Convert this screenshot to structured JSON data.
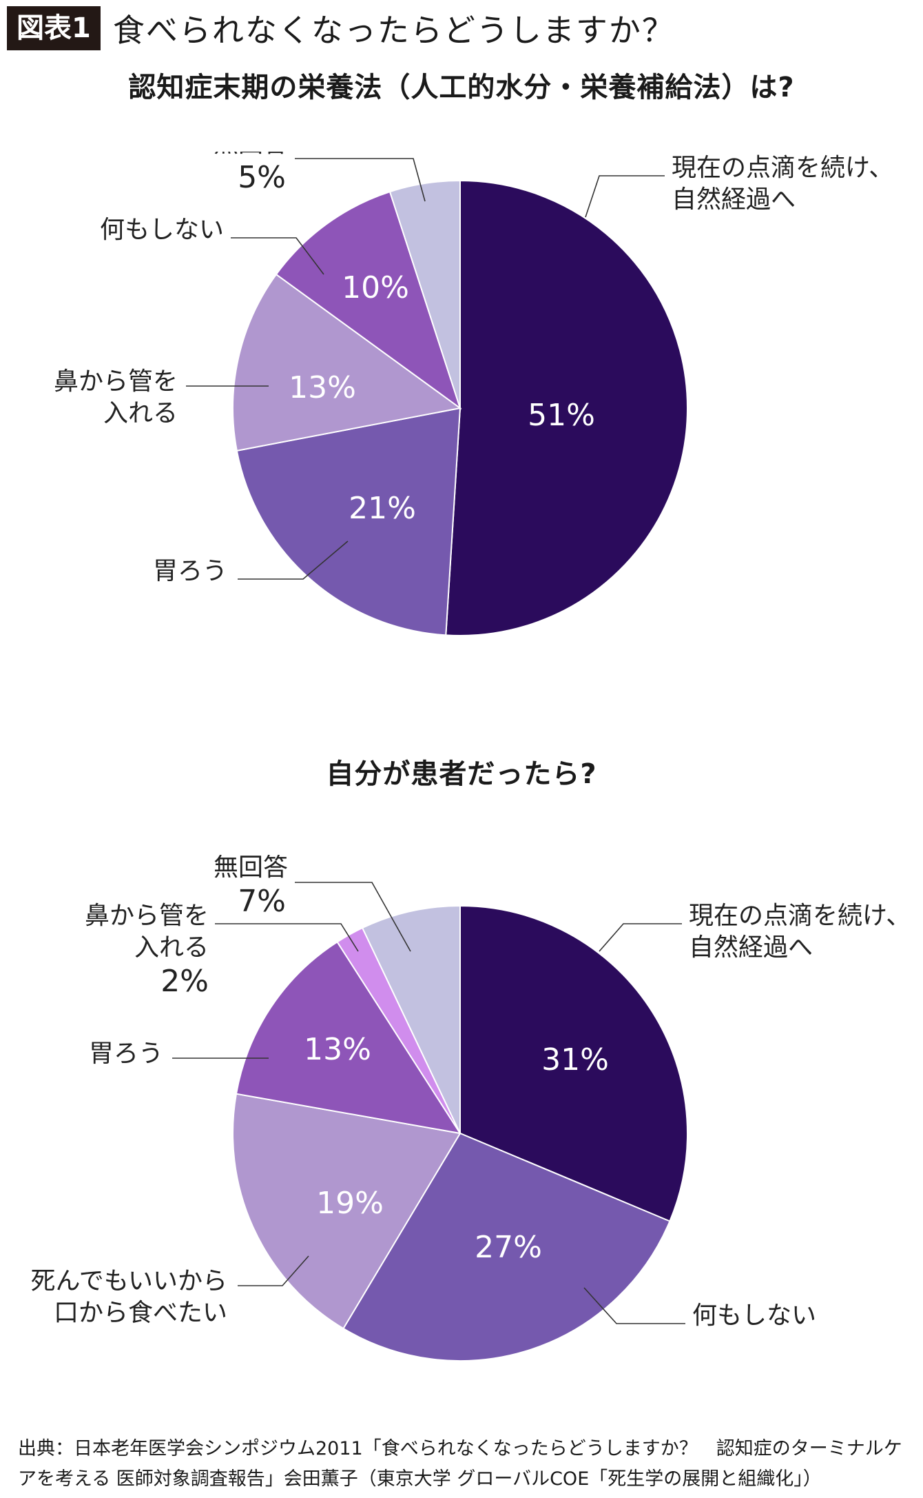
{
  "header": {
    "badge": "図表1",
    "title": "食べられなくなったらどうしますか？"
  },
  "chart_data": [
    {
      "type": "pie",
      "title": "認知症末期の栄養法（人工的水分・栄養補給法）は?",
      "slices": [
        {
          "label": "現在の点滴を続け、\n自然経過へ",
          "value": 51,
          "pct_label": "51%",
          "color": "#2b0b5c"
        },
        {
          "label": "胃ろう",
          "value": 21,
          "pct_label": "21%",
          "color": "#7559ae"
        },
        {
          "label": "鼻から管を\n入れる",
          "value": 13,
          "pct_label": "13%",
          "color": "#b097cf"
        },
        {
          "label": "何もしない",
          "value": 10,
          "pct_label": "10%",
          "color": "#8e55b8"
        },
        {
          "label": "無回答",
          "value": 5,
          "pct_label": "5%",
          "color": "#c2c1e0"
        }
      ]
    },
    {
      "type": "pie",
      "title": "自分が患者だったら?",
      "slices": [
        {
          "label": "現在の点滴を続け、\n自然経過へ",
          "value": 31,
          "pct_label": "31%",
          "color": "#2b0b5c"
        },
        {
          "label": "何もしない",
          "value": 27,
          "pct_label": "27%",
          "color": "#7559ae"
        },
        {
          "label": "死んでもいいから\n口から食べたい",
          "value": 19,
          "pct_label": "19%",
          "color": "#b097cf"
        },
        {
          "label": "胃ろう",
          "value": 13,
          "pct_label": "13%",
          "color": "#8e55b8"
        },
        {
          "label": "鼻から管を\n入れる",
          "value": 2,
          "pct_label": "2%",
          "color": "#d08ded"
        },
        {
          "label": "無回答",
          "value": 7,
          "pct_label": "7%",
          "color": "#c2c1e0"
        }
      ]
    }
  ],
  "source": "出典：日本老年医学会シンポジウム2011「食べられなくなったらどうしますか？　認知症のターミナルケアを考える 医師対象調査報告」会田薫子（東京大学 グローバルCOE「死生学の展開と組織化」）"
}
